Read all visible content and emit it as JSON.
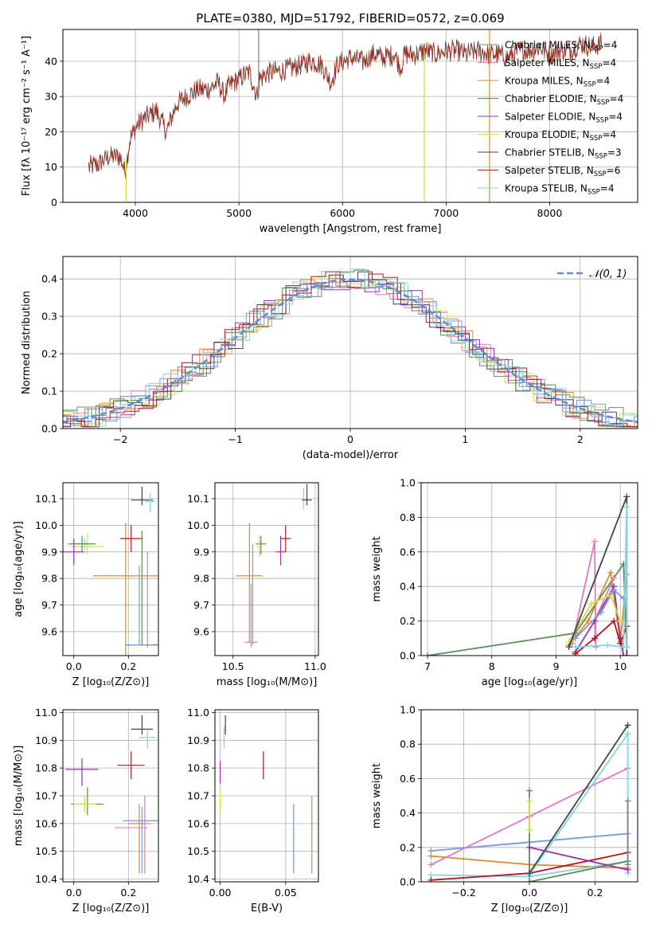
{
  "figure": {
    "title": "PLATE=0380, MJD=51792, FIBERID=0572, z=0.069"
  },
  "model_colors": [
    "#7f7f7f",
    "#e377c2",
    "#d98a2b",
    "#4f8f4f",
    "#9b2fae",
    "#d5de3c",
    "#444444",
    "#b0161b",
    "#7fd6e0"
  ],
  "chart_data": [
    {
      "id": "spectrum",
      "type": "line",
      "title": "PLATE=0380, MJD=51792, FIBERID=0572, z=0.069",
      "xlabel": "wavelength [Angstrom, rest frame]",
      "ylabel": "Flux [fλ 10⁻¹⁷ erg cm⁻² s⁻¹ A⁻¹]",
      "xlim": [
        3300,
        8850
      ],
      "ylim": [
        0,
        49
      ],
      "xticks": [
        4000,
        5000,
        6000,
        7000,
        8000
      ],
      "yticks": [
        0,
        10,
        20,
        30,
        40
      ],
      "legend_position": "right",
      "legend": [
        {
          "label": "Chabrier MILES, N",
          "sub": "SSP",
          "eq": "=4"
        },
        {
          "label": "Salpeter MILES, N",
          "sub": "SSP",
          "eq": "=4"
        },
        {
          "label": "Kroupa MILES, N",
          "sub": "SSP",
          "eq": "=4"
        },
        {
          "label": "Chabrier ELODIE, N",
          "sub": "SSP",
          "eq": "=4"
        },
        {
          "label": "Salpeter ELODIE, N",
          "sub": "SSP",
          "eq": "=4"
        },
        {
          "label": "Kroupa ELODIE, N",
          "sub": "SSP",
          "eq": "=4"
        },
        {
          "label": "Chabrier STELIB, N",
          "sub": "SSP",
          "eq": "=3"
        },
        {
          "label": "Salpeter STELIB, N",
          "sub": "SSP",
          "eq": "=6"
        },
        {
          "label": "Kroupa STELIB, N",
          "sub": "SSP",
          "eq": "=4"
        }
      ],
      "series": {
        "x": [
          3550,
          3650,
          3750,
          3850,
          3900,
          3950,
          4000,
          4050,
          4100,
          4200,
          4300,
          4400,
          4500,
          4600,
          4700,
          4800,
          4860,
          4900,
          5000,
          5100,
          5175,
          5200,
          5300,
          5400,
          5500,
          5600,
          5700,
          5800,
          5890,
          5950,
          6000,
          6100,
          6200,
          6300,
          6400,
          6500,
          6563,
          6600,
          6700,
          6800,
          6900,
          7000,
          7100,
          7200,
          7300,
          7400,
          7500,
          7600,
          7700,
          7800,
          7900,
          8000,
          8100,
          8200,
          8300,
          8400,
          8500
        ],
        "y": [
          10,
          11,
          13,
          13,
          9,
          18,
          21,
          23,
          24,
          26,
          20,
          28,
          30,
          32,
          32,
          34,
          30,
          33,
          35,
          37,
          30,
          35,
          37,
          37,
          38,
          39,
          40,
          39,
          34,
          39,
          40,
          41,
          40,
          42,
          41,
          42,
          38,
          42,
          42,
          43,
          42,
          43,
          43,
          42,
          43,
          42,
          42,
          41,
          43,
          43,
          44,
          42,
          43,
          43,
          45,
          44,
          45
        ]
      },
      "spikes": [
        {
          "x": 3910,
          "ymin": 0,
          "ymax": 12
        },
        {
          "x": 5190,
          "ymin": 30,
          "ymax": 49
        },
        {
          "x": 6790,
          "ymin": 0,
          "ymax": 43
        },
        {
          "x": 7420,
          "ymin": 0,
          "ymax": 49
        }
      ]
    },
    {
      "id": "residuals",
      "type": "histogram",
      "xlabel": "(data-model)/error",
      "ylabel": "Normed distribution",
      "xlim": [
        -2.5,
        2.5
      ],
      "ylim": [
        0,
        0.46
      ],
      "xticks": [
        -2,
        -1,
        0,
        1,
        2
      ],
      "yticks": [
        0.0,
        0.1,
        0.2,
        0.3,
        0.4
      ],
      "xtick_labels": [
        "−2",
        "−1",
        "0",
        "1",
        "2"
      ],
      "legend_position": "upper right",
      "legend": [
        {
          "label": "𝒩(0, 1)"
        }
      ],
      "reference": {
        "type": "gaussian",
        "mean": 0,
        "sigma": 1
      }
    },
    {
      "id": "age_vs_Z",
      "type": "errorbar",
      "xlabel": "Z [log₁₀(Z/Z⊙)]",
      "ylabel": "age  [log₁₀(age/yr)]",
      "xlim": [
        -0.04,
        0.31
      ],
      "ylim": [
        9.51,
        10.16
      ],
      "xticks": [
        0.0,
        0.2
      ],
      "yticks": [
        9.6,
        9.7,
        9.8,
        9.9,
        10.0,
        10.1
      ],
      "points": [
        {
          "x": 0.25,
          "y": 9.55,
          "xerr": 0.06,
          "yerr": [
            0.0,
            0.43
          ]
        },
        {
          "x": 0.27,
          "y": 9.56,
          "xerr": 0.0,
          "yerr": [
            0.02,
            0.34
          ]
        },
        {
          "x": 0.19,
          "y": 9.81,
          "xerr": 0.12,
          "yerr": [
            0.3,
            0.2
          ]
        },
        {
          "x": 0.24,
          "y": 9.55,
          "xerr": 0.05,
          "yerr": [
            0.0,
            0.3
          ]
        },
        {
          "x": 0.04,
          "y": 9.93,
          "xerr": 0.03,
          "yerr": [
            0.02,
            0.02
          ]
        },
        {
          "x": 0.05,
          "y": 9.92,
          "xerr": 0.06,
          "yerr": [
            0.03,
            0.05
          ]
        },
        {
          "x": 0.03,
          "y": 9.93,
          "xerr": 0.05,
          "yerr": [
            0.03,
            0.03
          ]
        },
        {
          "x": 0.0,
          "y": 9.9,
          "xerr": 0.04,
          "yerr": [
            0.05,
            0.05
          ]
        },
        {
          "x": 0.21,
          "y": 9.95,
          "xerr": 0.04,
          "yerr": [
            0.05,
            0.05
          ]
        },
        {
          "x": 0.25,
          "y": 10.095,
          "xerr": 0.04,
          "yerr": [
            0.02,
            0.05
          ]
        },
        {
          "x": 0.28,
          "y": 10.09,
          "xerr": 0.02,
          "yerr": [
            0.04,
            0.03
          ]
        }
      ],
      "point_colors": [
        "#4f8f4f",
        "#e377c2",
        "#d98a2b",
        "#7799dd",
        "#7fd6e0",
        "#d5de3c",
        "#4f8f4f",
        "#9b2fae",
        "#b0161b",
        "#444444",
        "#7fd6e0"
      ]
    },
    {
      "id": "age_vs_mass",
      "type": "errorbar",
      "xlabel": "mass [log₁₀(M/M⊙)]",
      "ylabel": "",
      "xlim": [
        10.39,
        11.02
      ],
      "ylim": [
        9.51,
        10.16
      ],
      "xticks": [
        10.5,
        11.0
      ],
      "yticks": [
        9.6,
        9.7,
        9.8,
        9.9,
        10.0,
        10.1
      ],
      "points": [
        {
          "x": 10.61,
          "y": 9.56,
          "xerr": 0.04,
          "yerr": [
            0.02,
            0.22
          ]
        },
        {
          "x": 10.6,
          "y": 9.81,
          "xerr": 0.08,
          "yerr": [
            0.25,
            0.2
          ]
        },
        {
          "x": 10.62,
          "y": 9.57,
          "xerr": 0.0,
          "yerr": [
            0.02,
            0.36
          ]
        },
        {
          "x": 10.67,
          "y": 9.93,
          "xerr": 0.03,
          "yerr": [
            0.04,
            0.03
          ]
        },
        {
          "x": 10.66,
          "y": 9.92,
          "xerr": 0.02,
          "yerr": [
            0.04,
            0.04
          ]
        },
        {
          "x": 10.79,
          "y": 9.9,
          "xerr": 0.03,
          "yerr": [
            0.05,
            0.06
          ]
        },
        {
          "x": 10.82,
          "y": 9.95,
          "xerr": 0.03,
          "yerr": [
            0.05,
            0.05
          ]
        },
        {
          "x": 10.93,
          "y": 10.1,
          "xerr": 0.01,
          "yerr": [
            0.04,
            0.04
          ]
        },
        {
          "x": 10.95,
          "y": 10.095,
          "xerr": 0.03,
          "yerr": [
            0.02,
            0.06
          ]
        }
      ],
      "point_colors": [
        "#e377c2",
        "#d98a2b",
        "#7799dd",
        "#4f8f4f",
        "#d5de3c",
        "#9b2fae",
        "#b0161b",
        "#7fd6e0",
        "#444444"
      ]
    },
    {
      "id": "weight_vs_age",
      "type": "line",
      "xlabel": "age  [log₁₀(age/yr)]",
      "ylabel": "mass weight",
      "xlim": [
        6.9,
        10.27
      ],
      "ylim": [
        0.0,
        1.0
      ],
      "xticks": [
        7,
        8,
        9,
        10
      ],
      "yticks": [
        0.0,
        0.2,
        0.4,
        0.6,
        0.8,
        1.0
      ],
      "series": [
        {
          "x": [
            7.0,
            9.3,
            10.05,
            10.1
          ],
          "y": [
            0.0,
            0.13,
            0.53,
            0.05
          ]
        },
        {
          "x": [
            9.25,
            9.6,
            9.62,
            9.6,
            9.9
          ],
          "y": [
            0.07,
            0.66,
            0.05,
            0.2,
            0.45
          ]
        },
        {
          "x": [
            9.2,
            9.5,
            9.85,
            10.0,
            10.1
          ],
          "y": [
            0.06,
            0.2,
            0.48,
            0.08,
            0.47
          ]
        },
        {
          "x": [
            9.3,
            9.6,
            9.9,
            10.0,
            10.05
          ],
          "y": [
            0.02,
            0.2,
            0.4,
            0.1,
            0.0
          ]
        },
        {
          "x": [
            9.3,
            9.7,
            9.9,
            10.05
          ],
          "y": [
            0.1,
            0.25,
            0.38,
            0.33
          ]
        },
        {
          "x": [
            9.2,
            9.55,
            9.85,
            10.0
          ],
          "y": [
            0.08,
            0.3,
            0.35,
            0.2
          ]
        },
        {
          "x": [
            9.2,
            10.1,
            10.1
          ],
          "y": [
            0.05,
            0.92,
            0.0
          ]
        },
        {
          "x": [
            9.3,
            9.6,
            9.9,
            10.0,
            10.1
          ],
          "y": [
            0.01,
            0.1,
            0.2,
            0.07,
            0.17
          ]
        },
        {
          "x": [
            9.3,
            9.8,
            10.05,
            10.1,
            10.1
          ],
          "y": [
            0.05,
            0.06,
            0.05,
            0.86,
            0.05
          ]
        }
      ],
      "series_colors": [
        "#5d8a5d",
        "#e377c2",
        "#d98a2b",
        "#9b2fae",
        "#7799dd",
        "#d5de3c",
        "#444444",
        "#b0161b",
        "#7fd6e0"
      ]
    },
    {
      "id": "mass_vs_Z",
      "type": "errorbar",
      "xlabel": "Z [log₁₀(Z/Z⊙)]",
      "ylabel": "mass [log₁₀(M/M⊙)]",
      "xlim": [
        -0.04,
        0.31
      ],
      "ylim": [
        10.39,
        11.01
      ],
      "xticks": [
        0.0,
        0.2
      ],
      "yticks": [
        10.4,
        10.5,
        10.6,
        10.7,
        10.8,
        10.9,
        11.0
      ],
      "points": [
        {
          "x": 0.25,
          "y": 10.61,
          "xerr": 0.07,
          "yerr": [
            0.19,
            0.05
          ]
        },
        {
          "x": 0.24,
          "y": 10.6,
          "xerr": 0.04,
          "yerr": [
            0.18,
            0.07
          ]
        },
        {
          "x": 0.21,
          "y": 10.585,
          "xerr": 0.06,
          "yerr": [
            0.0,
            0.0
          ]
        },
        {
          "x": 0.26,
          "y": 10.6,
          "xerr": 0.0,
          "yerr": [
            0.18,
            0.1
          ]
        },
        {
          "x": 0.05,
          "y": 10.67,
          "xerr": 0.06,
          "yerr": [
            0.04,
            0.06
          ]
        },
        {
          "x": 0.04,
          "y": 10.67,
          "xerr": 0.04,
          "yerr": [
            0.03,
            0.03
          ]
        },
        {
          "x": 0.03,
          "y": 10.795,
          "xerr": 0.06,
          "yerr": [
            0.06,
            0.04
          ]
        },
        {
          "x": 0.21,
          "y": 10.81,
          "xerr": 0.05,
          "yerr": [
            0.05,
            0.05
          ]
        },
        {
          "x": 0.25,
          "y": 10.94,
          "xerr": 0.04,
          "yerr": [
            0.02,
            0.05
          ]
        },
        {
          "x": 0.27,
          "y": 10.91,
          "xerr": 0.03,
          "yerr": [
            0.04,
            0.03
          ]
        }
      ],
      "point_colors": [
        "#7799dd",
        "#d98a2b",
        "#e377c2",
        "#e377c2",
        "#4f8f4f",
        "#d5de3c",
        "#9b2fae",
        "#b0161b",
        "#444444",
        "#7fd6e0"
      ]
    },
    {
      "id": "mass_vs_EBV",
      "type": "errorbar",
      "xlabel": "E(B-V)",
      "ylabel": "",
      "xlim": [
        -0.004,
        0.075
      ],
      "ylim": [
        10.39,
        11.01
      ],
      "xticks": [
        0.0,
        0.05
      ],
      "xtick_labels": [
        "0.00",
        "0.05"
      ],
      "yticks": [
        10.4,
        10.5,
        10.6,
        10.7,
        10.8,
        10.9,
        11.0
      ],
      "points": [
        {
          "x": 0.056,
          "y": 10.55,
          "xerr": 0.0,
          "yerr": [
            0.13,
            0.12
          ]
        },
        {
          "x": 0.07,
          "y": 10.56,
          "xerr": 0.0,
          "yerr": [
            0.14,
            0.14
          ]
        },
        {
          "x": 0.0,
          "y": 10.69,
          "xerr": 0.0,
          "yerr": [
            0.05,
            0.03
          ]
        },
        {
          "x": 0.0,
          "y": 10.795,
          "xerr": 0.0,
          "yerr": [
            0.05,
            0.03
          ]
        },
        {
          "x": 0.033,
          "y": 10.81,
          "xerr": 0.0,
          "yerr": [
            0.05,
            0.05
          ]
        },
        {
          "x": 0.004,
          "y": 10.94,
          "xerr": 0.0,
          "yerr": [
            0.02,
            0.05
          ]
        },
        {
          "x": 0.003,
          "y": 10.92,
          "xerr": 0.0,
          "yerr": [
            0.05,
            0.03
          ]
        }
      ],
      "point_colors": [
        "#7799dd",
        "#d98a2b",
        "#d5de3c",
        "#9b2fae",
        "#b0161b",
        "#444444",
        "#7fd6e0"
      ]
    },
    {
      "id": "weight_vs_Z",
      "type": "line",
      "xlabel": "Z [log₁₀(Z/Z⊙)]",
      "ylabel": "mass weight",
      "xlim": [
        -0.33,
        0.33
      ],
      "ylim": [
        0.0,
        1.0
      ],
      "xticks": [
        -0.2,
        0.0,
        0.2
      ],
      "xtick_labels": [
        "−0.2",
        "0.0",
        "0.2"
      ],
      "yticks": [
        0.0,
        0.2,
        0.4,
        0.6,
        0.8,
        1.0
      ],
      "series": [
        {
          "x": [
            -0.3,
            0.0,
            0.3
          ],
          "y": [
            0.18,
            0.23,
            0.28
          ]
        },
        {
          "x": [
            -0.3,
            0.0,
            0.3
          ],
          "y": [
            0.15,
            0.1,
            0.08
          ]
        },
        {
          "x": [
            -0.3,
            0.0,
            0.3
          ],
          "y": [
            0.04,
            0.03,
            0.12
          ]
        },
        {
          "x": [
            -0.3,
            0.0,
            0.3
          ],
          "y": [
            0.01,
            0.05,
            0.17
          ]
        },
        {
          "x": [
            -0.3,
            0.0,
            0.3
          ],
          "y": [
            0.1,
            0.38,
            0.66
          ]
        },
        {
          "x": [
            0.0,
            0.0,
            0.3
          ],
          "y": [
            0.53,
            0.0,
            0.12
          ]
        },
        {
          "x": [
            0.0,
            0.3,
            0.3
          ],
          "y": [
            0.04,
            0.86,
            0.05
          ]
        },
        {
          "x": [
            0.0,
            0.3
          ],
          "y": [
            0.05,
            0.91
          ]
        },
        {
          "x": [
            0.0,
            0.3
          ],
          "y": [
            0.2,
            0.07
          ]
        },
        {
          "x": [
            0.0,
            0.0
          ],
          "y": [
            0.47,
            0.3
          ]
        },
        {
          "x": [
            0.3,
            0.3
          ],
          "y": [
            0.47,
            0.1
          ]
        }
      ],
      "series_colors": [
        "#7799dd",
        "#d98a2b",
        "#7fd6e0",
        "#b0161b",
        "#e377c2",
        "#5d8a5d",
        "#7fd6e0",
        "#444444",
        "#9b2fae",
        "#d5de3c",
        "#7f7f7f"
      ]
    }
  ]
}
